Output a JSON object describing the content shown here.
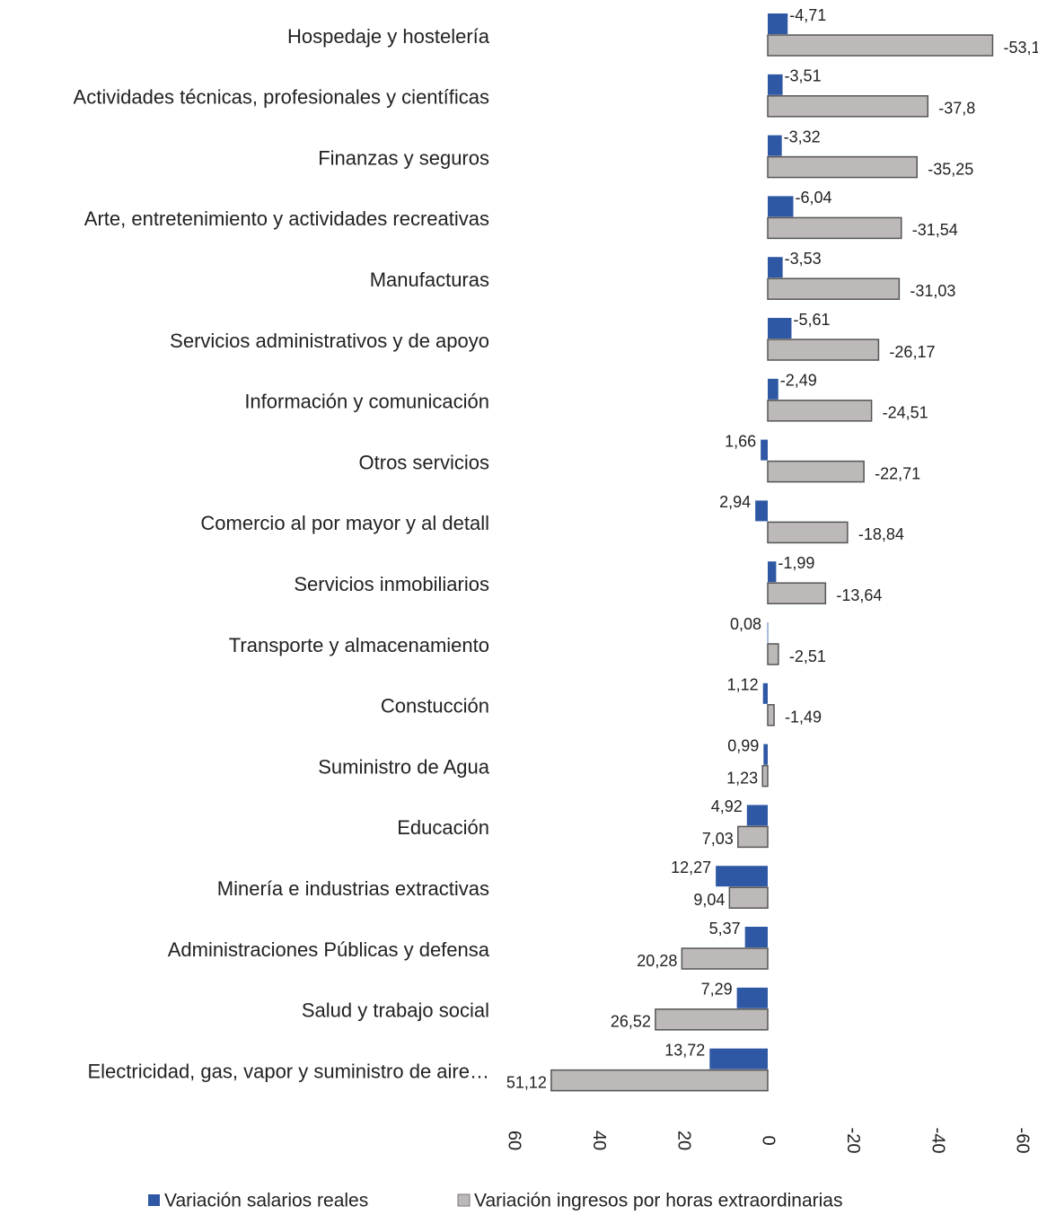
{
  "chart_data": {
    "type": "bar",
    "orientation": "horizontal",
    "x_reversed": true,
    "categories": [
      "Hospedaje y hostelería",
      "Actividades técnicas, profesionales y científicas",
      "Finanzas y seguros",
      "Arte, entretenimiento y actividades recreativas",
      "Manufacturas",
      "Servicios administrativos y de apoyo",
      "Información y comunicación",
      "Otros servicios",
      "Comercio al por mayor y al detall",
      "Servicios inmobiliarios",
      "Transporte y almacenamiento",
      "Constucción",
      "Suministro de Agua",
      "Educación",
      "Minería e industrias extractivas",
      "Administraciones Públicas y defensa",
      "Salud y trabajo social",
      "Electricidad, gas, vapor y suministro de aire…"
    ],
    "series": [
      {
        "name": "Variación salarios reales",
        "color": "#2f58a4",
        "values": [
          -4.71,
          -3.51,
          -3.32,
          -6.04,
          -3.53,
          -5.61,
          -2.49,
          1.66,
          2.94,
          -1.99,
          0.08,
          1.12,
          0.99,
          4.92,
          12.27,
          5.37,
          7.29,
          13.72
        ],
        "value_labels": [
          "-4,71",
          "-3,51",
          "-3,32",
          "-6,04",
          "-3,53",
          "-5,61",
          "-2,49",
          "1,66",
          "2,94",
          "-1,99",
          "0,08",
          "1,12",
          "0,99",
          "4,92",
          "12,27",
          "5,37",
          "7,29",
          "13,72"
        ]
      },
      {
        "name": "Variación ingresos por horas extraordinarias",
        "color": "#bdb9b9",
        "values": [
          -53.1,
          -37.8,
          -35.25,
          -31.54,
          -31.03,
          -26.17,
          -24.51,
          -22.71,
          -18.84,
          -13.64,
          -2.51,
          -1.49,
          1.23,
          7.03,
          9.04,
          20.28,
          26.52,
          51.12
        ],
        "value_labels": [
          "-53,1",
          "-37,8",
          "-35,25",
          "-31,54",
          "-31,03",
          "-26,17",
          "-24,51",
          "-22,71",
          "-18,84",
          "-13,64",
          "-2,51",
          "-1,49",
          "1,23",
          "7,03",
          "9,04",
          "20,28",
          "26,52",
          "51,12"
        ]
      }
    ],
    "xlim": [
      60,
      -60
    ],
    "xticks": [
      60,
      40,
      20,
      0,
      -20,
      -40,
      -60
    ],
    "legend": "bottom"
  }
}
